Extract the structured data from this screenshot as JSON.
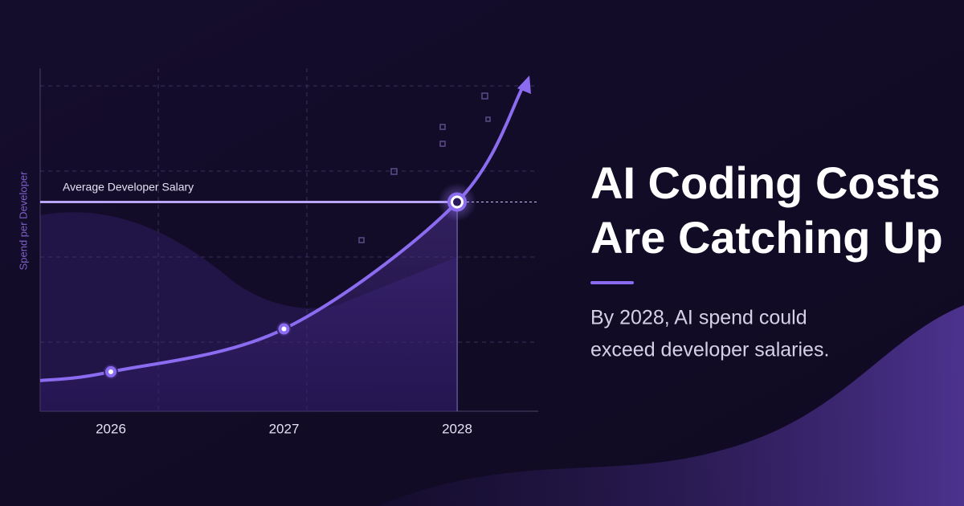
{
  "chart_data": {
    "type": "line",
    "title_lines": [
      "AI Coding Costs",
      "Are Catching Up"
    ],
    "subtitle_lines": [
      "By 2028, AI spend could",
      "exceed developer salaries."
    ],
    "ylabel": "Spend per Developer",
    "categories": [
      "2026",
      "2027",
      "2028"
    ],
    "values": [
      11.5,
      24,
      61
    ],
    "ylim": [
      0,
      100
    ],
    "reference": {
      "label": "Average Developer Salary",
      "value": 61
    },
    "color": "#8b6cf0",
    "grid": true
  }
}
